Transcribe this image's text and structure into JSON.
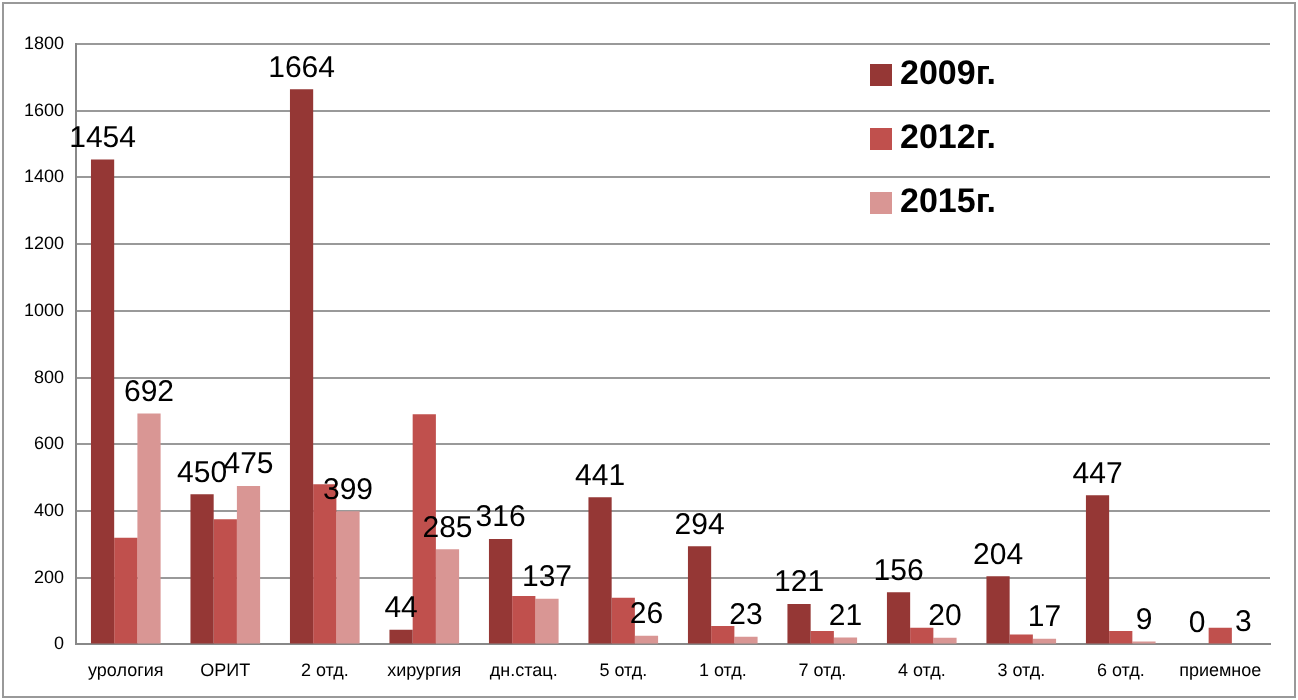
{
  "chart_data": {
    "type": "bar",
    "categories": [
      "урология",
      "ОРИТ",
      "2 отд.",
      "хирургия",
      "дн.стац.",
      "5 отд.",
      "1 отд.",
      "7 отд.",
      "4 отд.",
      "3 отд.",
      "6 отд.",
      "приемное"
    ],
    "series": [
      {
        "name": "2009г.",
        "color": "#953735",
        "values": [
          1454,
          450,
          1664,
          44,
          316,
          441,
          294,
          121,
          156,
          204,
          447,
          0
        ],
        "value_labels": [
          "1454",
          "450",
          "1664",
          "44",
          "316",
          "441",
          "294",
          "121",
          "156",
          "204",
          "447",
          "0"
        ]
      },
      {
        "name": "2012г.",
        "color": "#c0504d",
        "values": [
          320,
          375,
          480,
          690,
          145,
          140,
          55,
          40,
          50,
          30,
          40,
          50
        ]
      },
      {
        "name": "2015г.",
        "color": "#d99694",
        "values": [
          692,
          475,
          399,
          285,
          137,
          26,
          23,
          21,
          20,
          17,
          9,
          3
        ],
        "value_labels": [
          "692",
          "475",
          "399",
          "285",
          "137",
          "26",
          "23",
          "21",
          "20",
          "17",
          "9",
          "3"
        ]
      }
    ],
    "ylim": [
      0,
      1800
    ],
    "yticks": [
      0,
      200,
      400,
      600,
      800,
      1000,
      1200,
      1400,
      1600,
      1800
    ],
    "grid": "y",
    "legend": "top right"
  }
}
